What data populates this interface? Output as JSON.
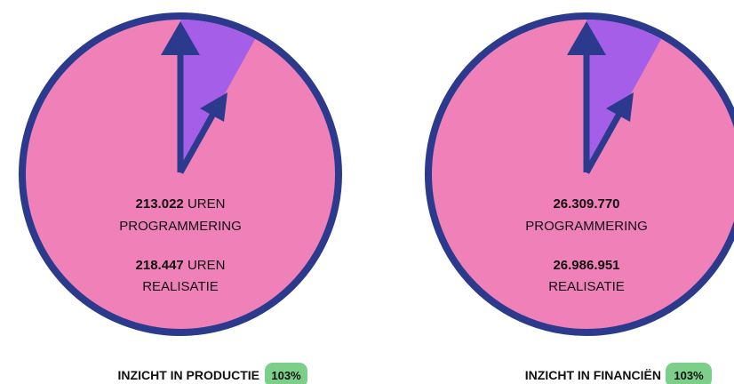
{
  "panels": [
    {
      "programmering": {
        "value": "213.022",
        "unit": "UREN",
        "label": "PROGRAMMERING"
      },
      "realisatie": {
        "value": "218.447",
        "unit": "UREN",
        "label": "REALISATIE"
      },
      "title": "INZICHT IN PRODUCTIE",
      "percentage": "103%"
    },
    {
      "programmering": {
        "value": "26.309.770",
        "label": "PROGRAMMERING"
      },
      "realisatie": {
        "value": "26.986.951",
        "label": "REALISATIE"
      },
      "title": "INZICHT IN FINANCIËN",
      "percentage": "103%"
    }
  ]
}
